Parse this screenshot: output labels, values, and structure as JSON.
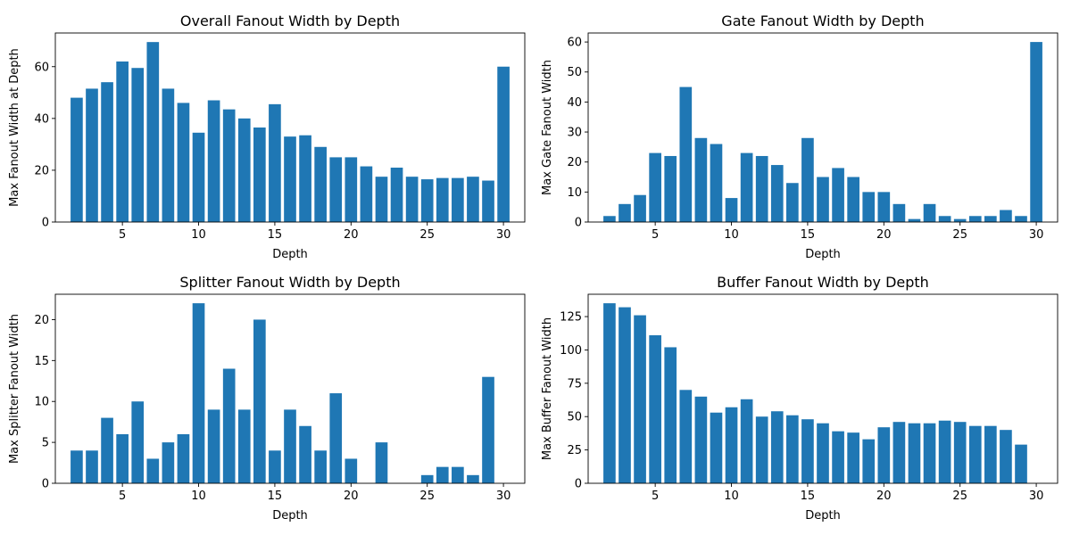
{
  "chart_data": [
    {
      "type": "bar",
      "title": "Overall Fanout Width by Depth",
      "xlabel": "Depth",
      "ylabel": "Max Fanout Width at Depth",
      "xlim": [
        0.6,
        31.4
      ],
      "ylim": [
        0,
        73
      ],
      "xticks": [
        5,
        10,
        15,
        20,
        25,
        30
      ],
      "yticks": [
        0,
        20,
        40,
        60
      ],
      "bar_color": "#1f77b4",
      "x": [
        2,
        3,
        4,
        5,
        6,
        7,
        8,
        9,
        10,
        11,
        12,
        13,
        14,
        15,
        16,
        17,
        18,
        19,
        20,
        21,
        22,
        23,
        24,
        25,
        26,
        27,
        28,
        29,
        30
      ],
      "values": [
        48,
        51.5,
        54,
        62,
        59.5,
        69.5,
        51.5,
        46,
        34.5,
        47,
        43.5,
        40,
        36.5,
        45.5,
        33,
        33.5,
        29,
        25,
        25,
        21.5,
        17.5,
        21,
        17.5,
        16.5,
        17,
        17,
        17.5,
        16,
        60
      ]
    },
    {
      "type": "bar",
      "title": "Gate Fanout Width by Depth",
      "xlabel": "Depth",
      "ylabel": "Max Gate Fanout Width",
      "xlim": [
        0.6,
        31.4
      ],
      "ylim": [
        0,
        63
      ],
      "xticks": [
        5,
        10,
        15,
        20,
        25,
        30
      ],
      "yticks": [
        0,
        10,
        20,
        30,
        40,
        50,
        60
      ],
      "bar_color": "#1f77b4",
      "x": [
        2,
        3,
        4,
        5,
        6,
        7,
        8,
        9,
        10,
        11,
        12,
        13,
        14,
        15,
        16,
        17,
        18,
        19,
        20,
        21,
        22,
        23,
        24,
        25,
        26,
        27,
        28,
        29,
        30
      ],
      "values": [
        2,
        6,
        9,
        23,
        22,
        45,
        28,
        26,
        8,
        23,
        22,
        19,
        13,
        28,
        15,
        18,
        15,
        10,
        10,
        6,
        1,
        6,
        2,
        1,
        2,
        2,
        4,
        2,
        60
      ]
    },
    {
      "type": "bar",
      "title": "Splitter Fanout Width by Depth",
      "xlabel": "Depth",
      "ylabel": "Max Splitter Fanout Width",
      "xlim": [
        0.6,
        31.4
      ],
      "ylim": [
        0,
        23.1
      ],
      "xticks": [
        5,
        10,
        15,
        20,
        25,
        30
      ],
      "yticks": [
        0,
        5,
        10,
        15,
        20
      ],
      "bar_color": "#1f77b4",
      "x": [
        2,
        3,
        4,
        5,
        6,
        7,
        8,
        9,
        10,
        11,
        12,
        13,
        14,
        15,
        16,
        17,
        18,
        19,
        20,
        21,
        22,
        23,
        24,
        25,
        26,
        27,
        28,
        29,
        30
      ],
      "values": [
        4,
        4,
        8,
        6,
        10,
        3,
        5,
        6,
        22,
        9,
        14,
        9,
        20,
        4,
        9,
        7,
        4,
        11,
        3,
        0,
        5,
        0,
        0,
        1,
        2,
        2,
        1,
        13,
        0
      ]
    },
    {
      "type": "bar",
      "title": "Buffer Fanout Width by Depth",
      "xlabel": "Depth",
      "ylabel": "Max Buffer Fanout Width",
      "xlim": [
        0.6,
        31.4
      ],
      "ylim": [
        0,
        141.75
      ],
      "xticks": [
        5,
        10,
        15,
        20,
        25,
        30
      ],
      "yticks": [
        0,
        25,
        50,
        75,
        100,
        125
      ],
      "bar_color": "#1f77b4",
      "x": [
        2,
        3,
        4,
        5,
        6,
        7,
        8,
        9,
        10,
        11,
        12,
        13,
        14,
        15,
        16,
        17,
        18,
        19,
        20,
        21,
        22,
        23,
        24,
        25,
        26,
        27,
        28,
        29,
        30
      ],
      "values": [
        135,
        132,
        126,
        111,
        102,
        70,
        65,
        53,
        57,
        63,
        50,
        54,
        51,
        48,
        45,
        39,
        38,
        33,
        42,
        46,
        45,
        45,
        47,
        46,
        43,
        43,
        40,
        29,
        0
      ]
    }
  ]
}
